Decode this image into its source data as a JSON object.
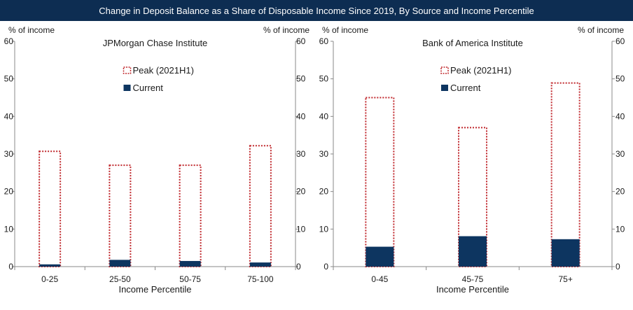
{
  "header": {
    "title": "Change in Deposit Balance as a Share of Disposable Income Since 2019, By Source and Income Percentile"
  },
  "colors": {
    "banner": "#0d2d52",
    "current": "#0d3560",
    "peak_border": "#c0282d",
    "axis": "#888888"
  },
  "chart_data": [
    {
      "type": "bar",
      "title": "JPMorgan Chase Institute",
      "xlabel": "Income Percentile",
      "ylabel_left": "% of income",
      "ylabel_right": "% of income",
      "ylim": [
        0,
        60
      ],
      "yticks": [
        0,
        10,
        20,
        30,
        40,
        50,
        60
      ],
      "grid": false,
      "legend_position": "top-center",
      "categories": [
        "0-25",
        "25-50",
        "50-75",
        "75-100"
      ],
      "series": [
        {
          "name": "Peak (2021H1)",
          "style": "dotted-outline",
          "values": [
            30.7,
            27.0,
            27.0,
            32.2
          ]
        },
        {
          "name": "Current",
          "style": "filled",
          "values": [
            0.6,
            1.8,
            1.5,
            1.1
          ]
        }
      ]
    },
    {
      "type": "bar",
      "title": "Bank of America Institute",
      "xlabel": "Income Percentile",
      "ylabel_left": "% of income",
      "ylabel_right": "% of income",
      "ylim": [
        0,
        60
      ],
      "yticks": [
        0,
        10,
        20,
        30,
        40,
        50,
        60
      ],
      "grid": false,
      "legend_position": "top-center",
      "categories": [
        "0-45",
        "45-75",
        "75+"
      ],
      "series": [
        {
          "name": "Peak (2021H1)",
          "style": "dotted-outline",
          "values": [
            45.0,
            37.0,
            48.9
          ]
        },
        {
          "name": "Current",
          "style": "filled",
          "values": [
            5.3,
            8.1,
            7.3
          ]
        }
      ]
    }
  ]
}
